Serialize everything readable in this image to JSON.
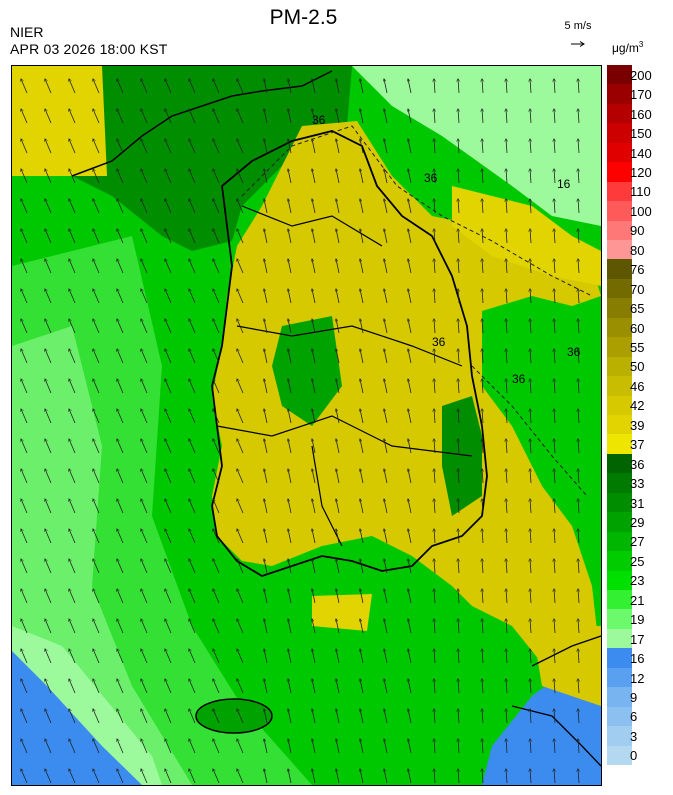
{
  "header": {
    "title": "PM-2.5",
    "agency": "NIER",
    "datetime": "APR 03 2026 18:00 KST",
    "wind_reference": "5 m/s",
    "unit": "μg/m",
    "unit_superscript": "3"
  },
  "map": {
    "contour_labels": [
      "36",
      "36",
      "36",
      "36",
      "16",
      "36"
    ],
    "arrow-icon": "wind-vector-arrow"
  },
  "legend": {
    "levels": [
      {
        "label": "200",
        "color": "#7a0000"
      },
      {
        "label": "170",
        "color": "#9a0000"
      },
      {
        "label": "160",
        "color": "#b40000"
      },
      {
        "label": "150",
        "color": "#cc0000"
      },
      {
        "label": "140",
        "color": "#e00000"
      },
      {
        "label": "120",
        "color": "#ff0000"
      },
      {
        "label": "110",
        "color": "#ff3a3a"
      },
      {
        "label": "100",
        "color": "#ff5a5a"
      },
      {
        "label": "90",
        "color": "#ff7878"
      },
      {
        "label": "80",
        "color": "#ff9696"
      },
      {
        "label": "76",
        "color": "#5e5600"
      },
      {
        "label": "70",
        "color": "#736a00"
      },
      {
        "label": "65",
        "color": "#877d00"
      },
      {
        "label": "60",
        "color": "#9a8f00"
      },
      {
        "label": "55",
        "color": "#ab9f00"
      },
      {
        "label": "50",
        "color": "#bab000"
      },
      {
        "label": "46",
        "color": "#c9bd00"
      },
      {
        "label": "42",
        "color": "#d6c900"
      },
      {
        "label": "39",
        "color": "#e1d400"
      },
      {
        "label": "37",
        "color": "#eee500"
      },
      {
        "label": "36",
        "color": "#006400"
      },
      {
        "label": "33",
        "color": "#007a00"
      },
      {
        "label": "31",
        "color": "#008e00"
      },
      {
        "label": "29",
        "color": "#00a200"
      },
      {
        "label": "27",
        "color": "#00b600"
      },
      {
        "label": "25",
        "color": "#00cc00"
      },
      {
        "label": "23",
        "color": "#00e000"
      },
      {
        "label": "21",
        "color": "#33f033"
      },
      {
        "label": "19",
        "color": "#6cfa6c"
      },
      {
        "label": "17",
        "color": "#9cfa9c"
      },
      {
        "label": "16",
        "color": "#3c8cf0"
      },
      {
        "label": "12",
        "color": "#5aa0f0"
      },
      {
        "label": "9",
        "color": "#78b4f0"
      },
      {
        "label": "6",
        "color": "#8cc0f0"
      },
      {
        "label": "3",
        "color": "#a0cdf0"
      },
      {
        "label": "0",
        "color": "#b4d8f0"
      }
    ]
  }
}
